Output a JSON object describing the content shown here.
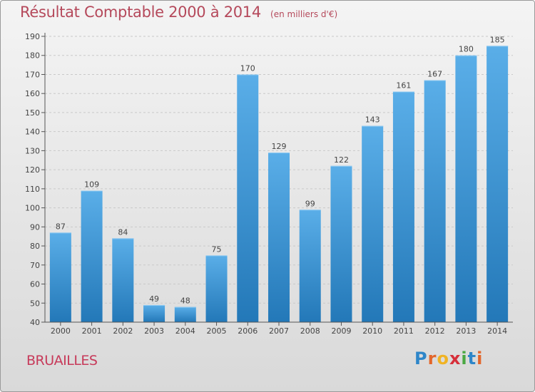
{
  "header": {
    "title": "Résultat Comptable 2000 à 2014",
    "subtitle": "(en milliers d'€)"
  },
  "footer": {
    "place": "BRUAILLES",
    "logo_letters": [
      "P",
      "r",
      "o",
      "x",
      "i",
      "t",
      "i"
    ],
    "logo_colors": [
      "#2e86c9",
      "#e3662b",
      "#f0b324",
      "#d62f3a",
      "#4aa843",
      "#2e86c9",
      "#e3662b"
    ]
  },
  "colors": {
    "bar_light": "#5aaee8",
    "bar_dark": "#2378b8",
    "grid": "#c9c9c9",
    "text": "#444444"
  },
  "chart_data": {
    "type": "bar",
    "title": "Résultat Comptable 2000 à 2014",
    "subtitle": "(en milliers d'€)",
    "categories": [
      "2000",
      "2001",
      "2002",
      "2003",
      "2004",
      "2005",
      "2006",
      "2007",
      "2008",
      "2009",
      "2010",
      "2011",
      "2012",
      "2013",
      "2014"
    ],
    "values": [
      87,
      109,
      84,
      49,
      48,
      75,
      170,
      129,
      99,
      122,
      143,
      161,
      167,
      180,
      185
    ],
    "xlabel": "",
    "ylabel": "",
    "ylim": [
      40,
      190
    ],
    "yticks": [
      40,
      50,
      60,
      70,
      80,
      90,
      100,
      110,
      120,
      130,
      140,
      150,
      160,
      170,
      180,
      190
    ],
    "grid": true,
    "data_labels": true
  }
}
